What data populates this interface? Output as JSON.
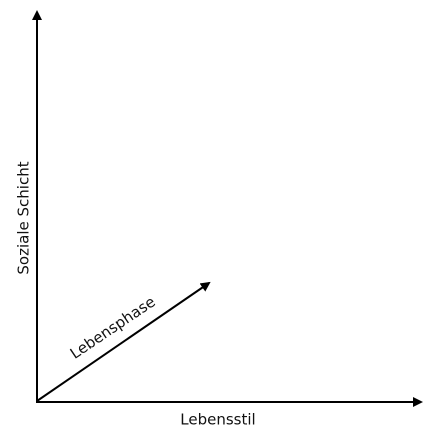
{
  "axes": {
    "vertical": {
      "label": "Soziale Schicht"
    },
    "horizontal": {
      "label": "Lebensstil"
    },
    "diagonal": {
      "label": "Lebensphase"
    }
  }
}
